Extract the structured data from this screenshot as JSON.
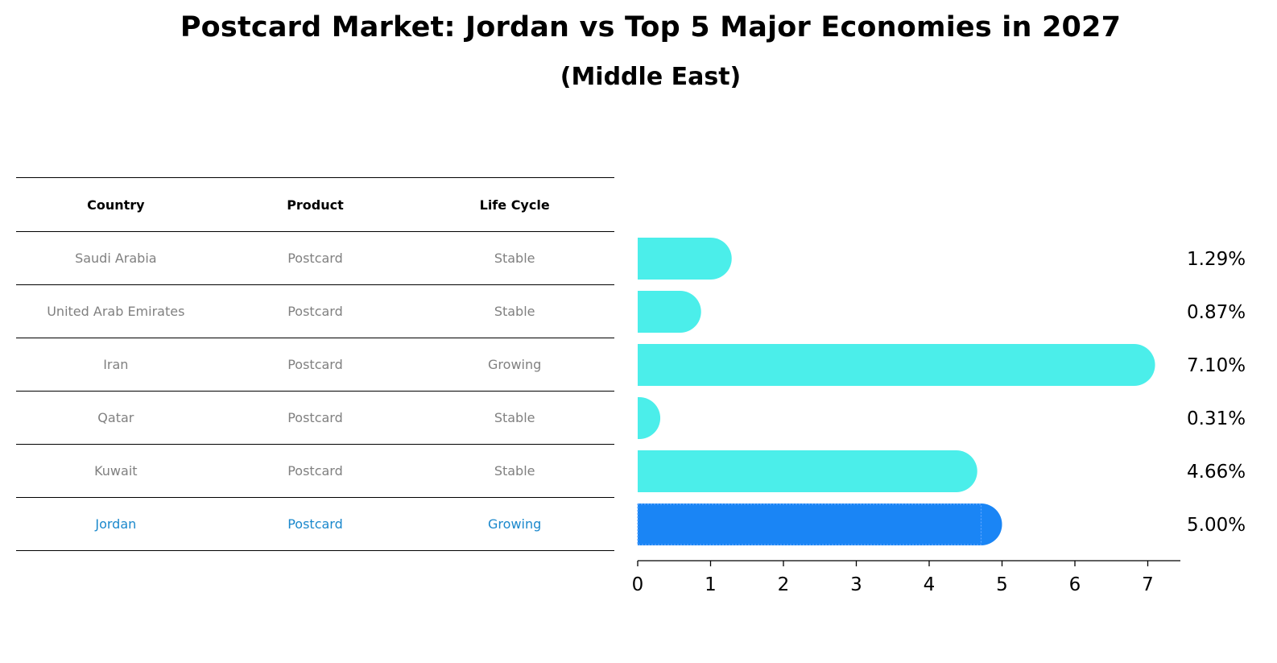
{
  "title": "Postcard Market: Jordan vs Top 5 Major Economies in 2027",
  "subtitle": "(Middle East)",
  "table": {
    "headers": [
      "Country",
      "Product",
      "Life Cycle"
    ],
    "rows": [
      {
        "country": "Saudi Arabia",
        "product": "Postcard",
        "life_cycle": "Stable"
      },
      {
        "country": "United Arab Emirates",
        "product": "Postcard",
        "life_cycle": "Stable"
      },
      {
        "country": "Iran",
        "product": "Postcard",
        "life_cycle": "Growing"
      },
      {
        "country": "Qatar",
        "product": "Postcard",
        "life_cycle": "Stable"
      },
      {
        "country": "Kuwait",
        "product": "Postcard",
        "life_cycle": "Stable"
      },
      {
        "country": "Jordan",
        "product": "Postcard",
        "life_cycle": "Growing"
      }
    ]
  },
  "colors": {
    "bar": "#4beeea",
    "highlight_bar": "#1a85f5",
    "highlight_text": "#1a88cc",
    "muted_text": "#808080"
  },
  "chart_data": {
    "type": "bar",
    "orientation": "horizontal",
    "title": "Postcard Market: Jordan vs Top 5 Major Economies in 2027",
    "subtitle": "(Middle East)",
    "categories": [
      "Saudi Arabia",
      "United Arab Emirates",
      "Iran",
      "Qatar",
      "Kuwait",
      "Jordan"
    ],
    "values": [
      1.29,
      0.87,
      7.1,
      0.31,
      4.66,
      5.0
    ],
    "value_labels": [
      "1.29%",
      "0.87%",
      "7.10%",
      "0.31%",
      "4.66%",
      "5.00%"
    ],
    "highlight": "Jordan",
    "xlim": [
      0,
      7.45
    ],
    "xticks": [
      0,
      1,
      2,
      3,
      4,
      5,
      6,
      7
    ],
    "xlabel": "",
    "ylabel": "",
    "grid": false
  }
}
